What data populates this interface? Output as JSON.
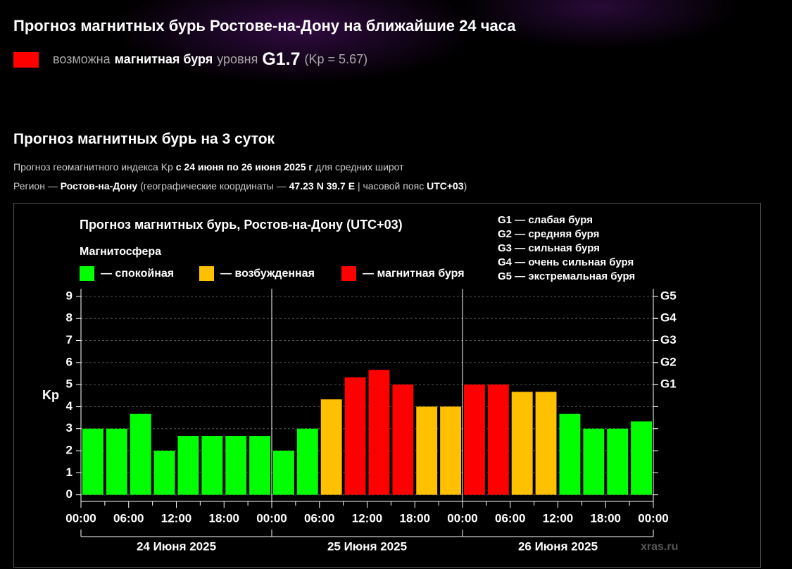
{
  "header": {
    "title": "Прогноз магнитных бурь Ростове-на-Дону на ближайшие 24 часа",
    "status": {
      "color": "#ff0000",
      "parts": [
        "возможна",
        "магнитная буря",
        "уровня",
        "G1.7",
        "(Kp = 5.67)"
      ]
    }
  },
  "section": {
    "title": "Прогноз магнитных бурь на 3 суток",
    "line1": [
      "Прогноз геомагнитного индекса Kp",
      "с 24 июня по 26 июня 2025 г",
      "для средних широт"
    ],
    "line2": [
      "Регион —",
      "Ростов-на-Дону",
      "(географические координаты —",
      "47.23 N 39.7 E",
      "| часовой пояс",
      "UTC+03",
      ")"
    ]
  },
  "chart_data": {
    "type": "bar",
    "title": "Прогноз магнитных бурь, Ростов-на-Дону (UTC+03)",
    "legend_title": "Магнитосфера",
    "legend": [
      {
        "name": "— спокойная",
        "color": "#00ff00"
      },
      {
        "name": "— возбужденная",
        "color": "#ffc000"
      },
      {
        "name": "— магнитная буря",
        "color": "#ff0000"
      }
    ],
    "g_legend": [
      "G1 — слабая буря",
      "G2 — средняя буря",
      "G3 — сильная буря",
      "G4 — очень сильная буря",
      "G5 — экстремальная буря"
    ],
    "ylabel": "Kp",
    "values": [
      3,
      3,
      3.67,
      2,
      2.67,
      2.67,
      2.67,
      2.67,
      2,
      3,
      4.33,
      5.33,
      5.67,
      5,
      4,
      4,
      5,
      5,
      4.67,
      4.67,
      3.67,
      3,
      3,
      3.33
    ],
    "colors": [
      "#00ff00",
      "#00ff00",
      "#00ff00",
      "#00ff00",
      "#00ff00",
      "#00ff00",
      "#00ff00",
      "#00ff00",
      "#00ff00",
      "#00ff00",
      "#ffc000",
      "#ff0000",
      "#ff0000",
      "#ff0000",
      "#ffc000",
      "#ffc000",
      "#ff0000",
      "#ff0000",
      "#ffc000",
      "#ffc000",
      "#00ff00",
      "#00ff00",
      "#00ff00",
      "#00ff00"
    ],
    "xtick_labels": [
      "00:00",
      "06:00",
      "12:00",
      "18:00",
      "00:00",
      "06:00",
      "12:00",
      "18:00",
      "00:00",
      "06:00",
      "12:00",
      "18:00",
      "00:00"
    ],
    "days": [
      "24 Июня 2025",
      "25 Июня 2025",
      "26 Июня 2025"
    ],
    "ylim": [
      -0.3,
      9.35
    ],
    "yticks": [
      0,
      1,
      2,
      3,
      4,
      5,
      6,
      7,
      8,
      9
    ],
    "y2ticks": [
      {
        "value": 5,
        "label": "G1"
      },
      {
        "value": 6,
        "label": "G2"
      },
      {
        "value": 7,
        "label": "G3"
      },
      {
        "value": 8,
        "label": "G4"
      },
      {
        "value": 9,
        "label": "G5"
      }
    ],
    "grid": true,
    "watermark": "xras.ru"
  }
}
